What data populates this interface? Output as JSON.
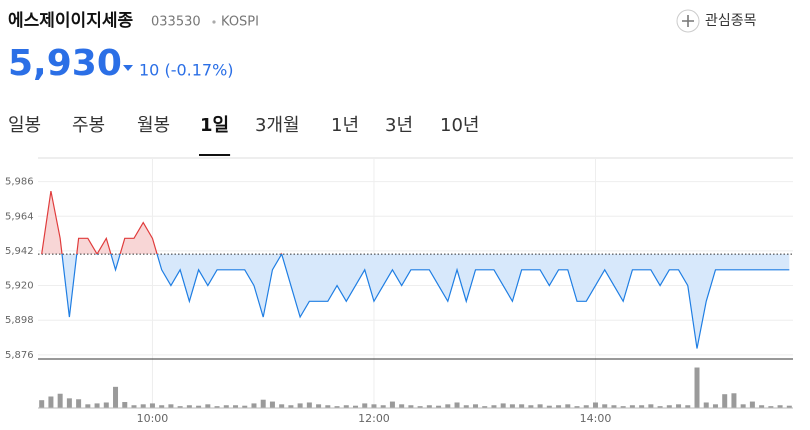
{
  "header": {
    "name": "에스제이이지세종",
    "code": "033530",
    "market": "KOSPI",
    "watchlist": "관심종목",
    "price": "5,930",
    "change": "10 (-0.17%)"
  },
  "tabs": {
    "items": [
      "일봉",
      "주봉",
      "월봉",
      "1일",
      "3개월",
      "1년",
      "3년",
      "10년"
    ],
    "active": 3
  },
  "chart_data": [
    {
      "type": "line",
      "base_price": 5940,
      "color_up": "#e03c3c",
      "color_down": "#1f7ee3",
      "fill_up": "#f8d6d6",
      "fill_down": "#d7e8fb",
      "x": [
        540,
        545,
        550,
        555,
        560,
        565,
        570,
        575,
        580,
        585,
        590,
        595,
        600,
        605,
        610,
        615,
        620,
        625,
        630,
        635,
        640,
        645,
        650,
        655,
        660,
        665,
        670,
        675,
        680,
        685,
        690,
        695,
        700,
        705,
        710,
        715,
        720,
        725,
        730,
        735,
        740,
        745,
        750,
        755,
        760,
        765,
        770,
        775,
        780,
        785,
        790,
        795,
        800,
        805,
        810,
        815,
        820,
        825,
        830,
        835,
        840,
        845,
        850,
        855,
        860,
        865,
        870,
        875,
        880,
        885,
        890,
        895,
        900,
        905,
        910,
        915,
        920,
        925,
        930,
        935,
        940,
        945
      ],
      "values": [
        5940,
        5980,
        5950,
        5900,
        5950,
        5950,
        5940,
        5950,
        5930,
        5950,
        5950,
        5960,
        5950,
        5930,
        5920,
        5930,
        5910,
        5930,
        5920,
        5930,
        5930,
        5930,
        5930,
        5920,
        5900,
        5930,
        5940,
        5920,
        5900,
        5910,
        5910,
        5910,
        5920,
        5910,
        5920,
        5930,
        5910,
        5920,
        5930,
        5920,
        5930,
        5930,
        5930,
        5920,
        5910,
        5930,
        5910,
        5930,
        5930,
        5930,
        5920,
        5910,
        5930,
        5930,
        5930,
        5920,
        5930,
        5930,
        5910,
        5910,
        5920,
        5930,
        5920,
        5910,
        5930,
        5930,
        5930,
        5920,
        5930,
        5930,
        5920,
        5880,
        5910,
        5930,
        5930,
        5930,
        5930,
        5930,
        5930,
        5930,
        5930,
        5930
      ],
      "xlim": [
        538,
        947
      ],
      "ylim": [
        5874,
        6001
      ],
      "xticks": [
        {
          "value": 600,
          "label": "10:00"
        },
        {
          "value": 720,
          "label": "12:00"
        },
        {
          "value": 840,
          "label": "14:00"
        }
      ],
      "yticks": [
        {
          "value": 5876,
          "label": "5,876"
        },
        {
          "value": 5898,
          "label": "5,898"
        },
        {
          "value": 5920,
          "label": "5,920"
        },
        {
          "value": 5942,
          "label": "5,942"
        },
        {
          "value": 5964,
          "label": "5,964"
        },
        {
          "value": 5986,
          "label": "5,986"
        }
      ],
      "grid": true
    },
    {
      "type": "bar",
      "color": "#9a9a9a",
      "x": [
        540,
        545,
        550,
        555,
        560,
        565,
        570,
        575,
        580,
        585,
        590,
        595,
        600,
        605,
        610,
        615,
        620,
        625,
        630,
        635,
        640,
        645,
        650,
        655,
        660,
        665,
        670,
        675,
        680,
        685,
        690,
        695,
        700,
        705,
        710,
        715,
        720,
        725,
        730,
        735,
        740,
        745,
        750,
        755,
        760,
        765,
        770,
        775,
        780,
        785,
        790,
        795,
        800,
        805,
        810,
        815,
        820,
        825,
        830,
        835,
        840,
        845,
        850,
        855,
        860,
        865,
        870,
        875,
        880,
        885,
        890,
        895,
        900,
        905,
        910,
        915,
        920,
        925,
        930,
        935,
        940,
        945
      ],
      "values": [
        17,
        25,
        31,
        21,
        19,
        8,
        10,
        12,
        46,
        13,
        6,
        8,
        10,
        6,
        8,
        4,
        6,
        5,
        8,
        4,
        6,
        6,
        5,
        10,
        18,
        14,
        8,
        6,
        10,
        12,
        8,
        6,
        4,
        6,
        5,
        10,
        8,
        6,
        14,
        8,
        6,
        4,
        6,
        5,
        8,
        12,
        6,
        8,
        4,
        6,
        10,
        8,
        8,
        6,
        8,
        5,
        6,
        8,
        4,
        6,
        12,
        8,
        6,
        4,
        6,
        6,
        8,
        4,
        6,
        8,
        6,
        88,
        12,
        8,
        30,
        32,
        8,
        14,
        6,
        4,
        6,
        5
      ],
      "ylim": [
        0,
        100
      ]
    }
  ]
}
